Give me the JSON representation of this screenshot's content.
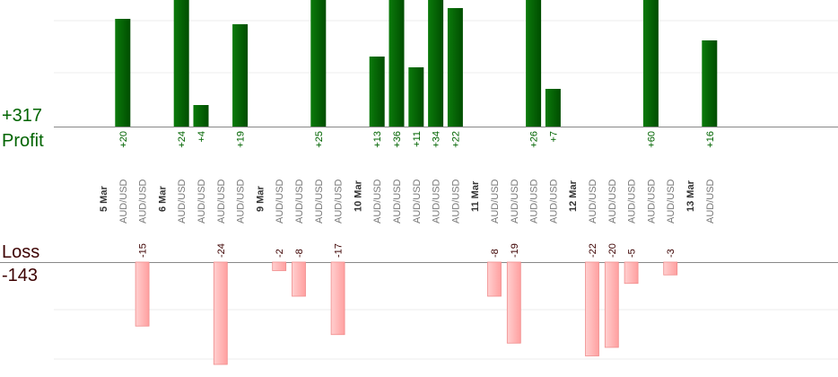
{
  "summary": {
    "profit_total": "+317",
    "profit_label": "Profit",
    "loss_label": "Loss",
    "loss_total": "-143"
  },
  "colors": {
    "profit_bar": "#006400",
    "loss_bar": "#ffb0b0",
    "profit_text": "#006400",
    "loss_text": "#3c0000",
    "grid": "#ececec",
    "axis": "#888888"
  },
  "chart_data": {
    "type": "bar",
    "profit_axis_ylim": [
      0,
      25
    ],
    "loss_axis_ylim": [
      0,
      24
    ],
    "grid": true,
    "columns": [
      {
        "label": "5 Mar",
        "kind": "date"
      },
      {
        "label": "AUD/USD",
        "kind": "trade",
        "value": 20
      },
      {
        "label": "AUD/USD",
        "kind": "trade",
        "value": -15
      },
      {
        "label": "6 Mar",
        "kind": "date"
      },
      {
        "label": "AUD/USD",
        "kind": "trade",
        "value": 24
      },
      {
        "label": "AUD/USD",
        "kind": "trade",
        "value": 4
      },
      {
        "label": "AUD/USD",
        "kind": "trade",
        "value": -24
      },
      {
        "label": "AUD/USD",
        "kind": "trade",
        "value": 19
      },
      {
        "label": "9 Mar",
        "kind": "date"
      },
      {
        "label": "AUD/USD",
        "kind": "trade",
        "value": -2
      },
      {
        "label": "AUD/USD",
        "kind": "trade",
        "value": -8
      },
      {
        "label": "AUD/USD",
        "kind": "trade",
        "value": 25
      },
      {
        "label": "AUD/USD",
        "kind": "trade",
        "value": -17
      },
      {
        "label": "10 Mar",
        "kind": "date"
      },
      {
        "label": "AUD/USD",
        "kind": "trade",
        "value": 13
      },
      {
        "label": "AUD/USD",
        "kind": "trade",
        "value": 36
      },
      {
        "label": "AUD/USD",
        "kind": "trade",
        "value": 11
      },
      {
        "label": "AUD/USD",
        "kind": "trade",
        "value": 34
      },
      {
        "label": "AUD/USD",
        "kind": "trade",
        "value": 22
      },
      {
        "label": "11 Mar",
        "kind": "date"
      },
      {
        "label": "AUD/USD",
        "kind": "trade",
        "value": -8
      },
      {
        "label": "AUD/USD",
        "kind": "trade",
        "value": -19
      },
      {
        "label": "AUD/USD",
        "kind": "trade",
        "value": 26
      },
      {
        "label": "AUD/USD",
        "kind": "trade",
        "value": 7
      },
      {
        "label": "12 Mar",
        "kind": "date"
      },
      {
        "label": "AUD/USD",
        "kind": "trade",
        "value": -22
      },
      {
        "label": "AUD/USD",
        "kind": "trade",
        "value": -20
      },
      {
        "label": "AUD/USD",
        "kind": "trade",
        "value": -5
      },
      {
        "label": "AUD/USD",
        "kind": "trade",
        "value": 60
      },
      {
        "label": "AUD/USD",
        "kind": "trade",
        "value": -3
      },
      {
        "label": "13 Mar",
        "kind": "date"
      },
      {
        "label": "AUD/USD",
        "kind": "trade",
        "value": 16
      }
    ]
  }
}
